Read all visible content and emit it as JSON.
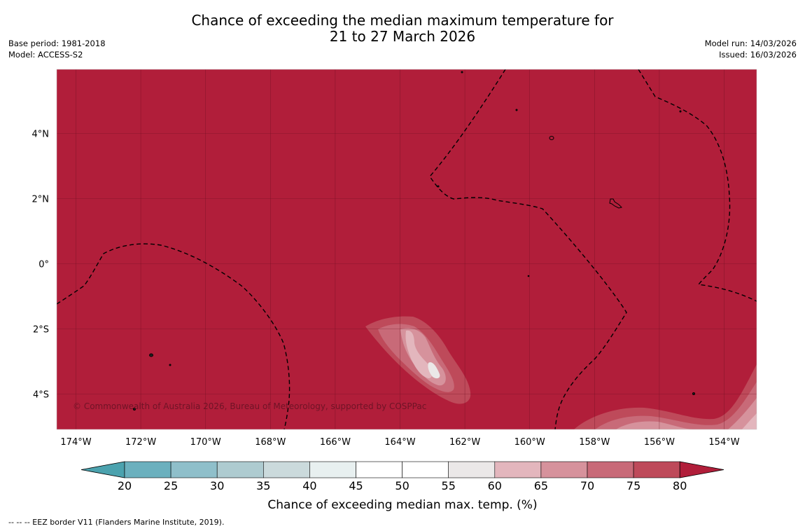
{
  "title": {
    "line1": "Chance of exceeding the median maximum temperature for",
    "line2": "21 to 27 March 2026"
  },
  "meta_left": {
    "base_period": "Base period: 1981-2018",
    "model": "Model: ACCESS-S2"
  },
  "meta_right": {
    "model_run": "Model run: 14/03/2026",
    "issued": "Issued: 16/03/2026"
  },
  "map": {
    "lon_ticks": [
      "174°W",
      "172°W",
      "170°W",
      "168°W",
      "166°W",
      "164°W",
      "162°W",
      "160°W",
      "158°W",
      "156°W",
      "154°W"
    ],
    "lat_ticks": [
      "4°N",
      "2°N",
      "0°",
      "2°S",
      "4°S"
    ],
    "credit": "© Commonwealth of Australia 2026, Bureau of Meteorology, supported by COSPPac",
    "background_color": "#b11e3a"
  },
  "colorbar": {
    "labels": [
      "20",
      "25",
      "30",
      "35",
      "40",
      "45",
      "50",
      "55",
      "60",
      "65",
      "70",
      "75",
      "80"
    ],
    "colors": [
      "#6bb0be",
      "#8fbfca",
      "#aecbd0",
      "#cbdadc",
      "#e8f0f0",
      "#ffffff",
      "#ffffff",
      "#ebe8e8",
      "#e3b6bd",
      "#d6929c",
      "#c86a78",
      "#be4a5a"
    ],
    "low_extend_color": "#4ba2ae",
    "high_extend_color": "#b11e3a",
    "title": "Chance of exceeding median max. temp. (%)"
  },
  "legend_note": "--  --  -- EEZ border V11 (Flanders Marine Institute, 2019)."
}
